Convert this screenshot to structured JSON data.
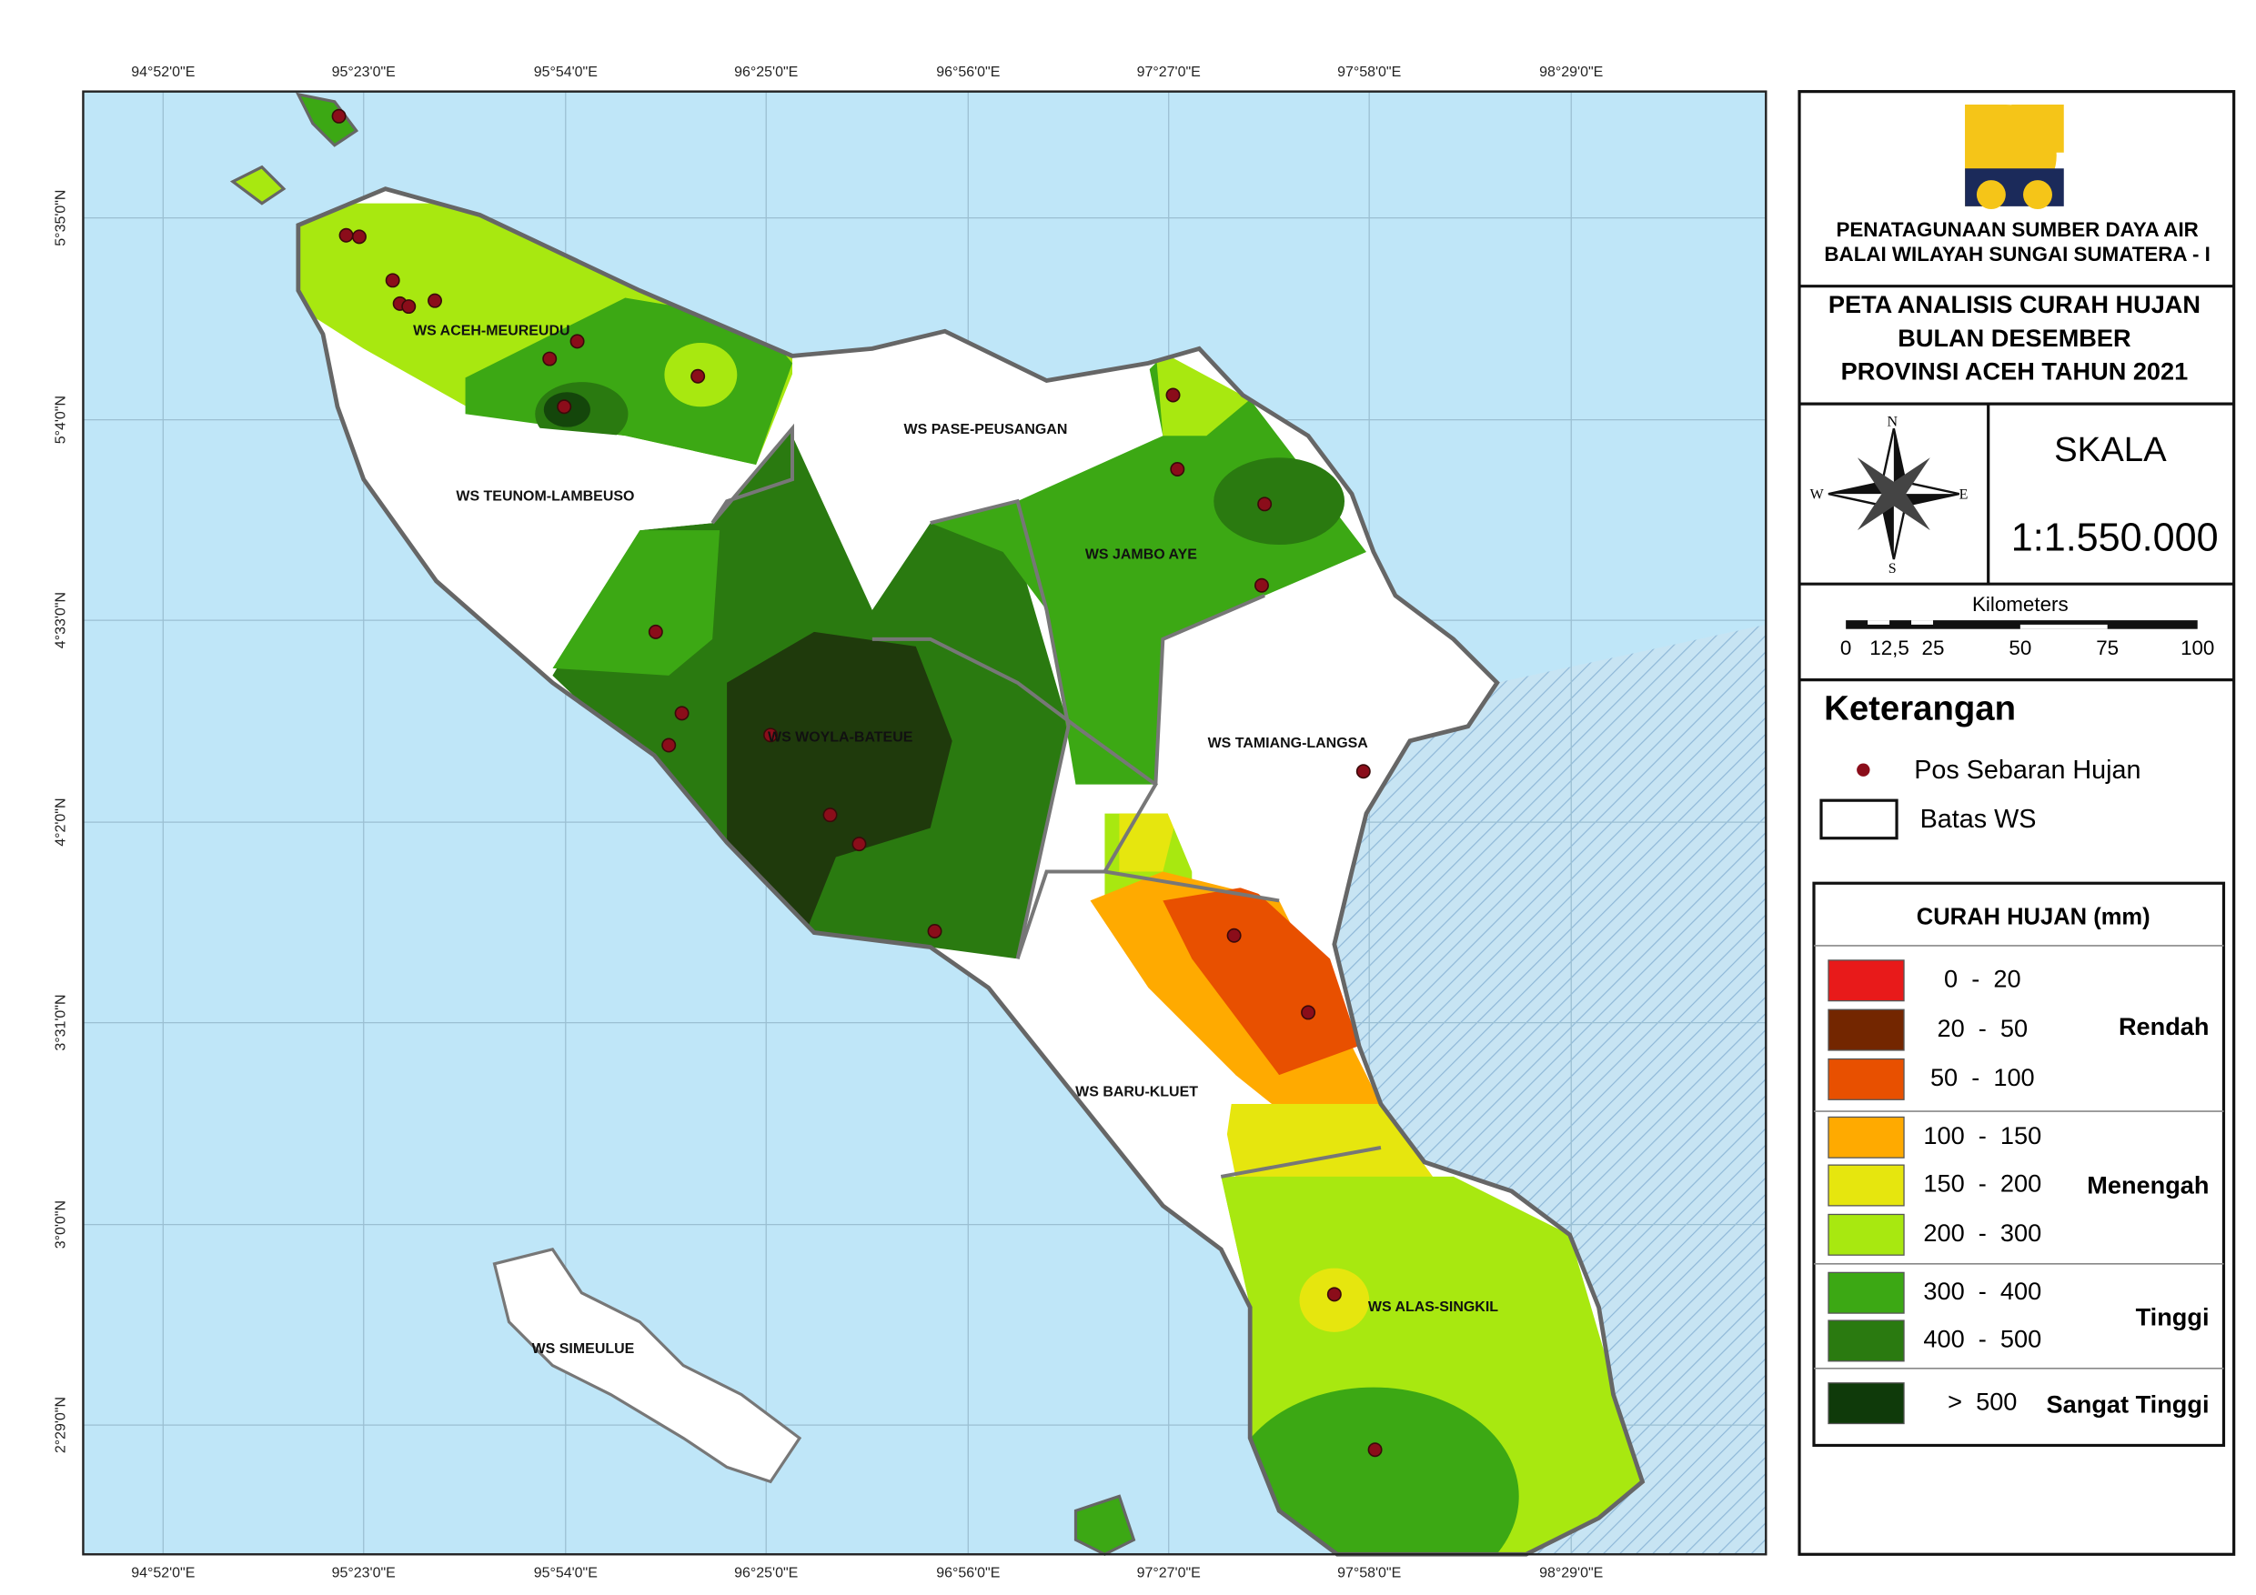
{
  "header": {
    "org": [
      "PENATAGUNAAN SUMBER DAYA AIR",
      "BALAI WILAYAH SUNGAI SUMATERA - I"
    ],
    "title": [
      "PETA ANALISIS CURAH HUJAN",
      "BULAN DESEMBER",
      "PROVINSI ACEH TAHUN 2021"
    ]
  },
  "compass": [
    "N",
    "E",
    "S",
    "W"
  ],
  "scale": {
    "label": "SKALA",
    "ratio": "1:1.550.000",
    "unit": "Kilometers",
    "ticks": [
      "0",
      "12,5",
      "25",
      "50",
      "75",
      "100"
    ]
  },
  "legend": {
    "title": "Keterangan",
    "items": [
      "Pos Sebaran Hujan",
      "Batas WS"
    ]
  },
  "rainfall": {
    "title": "CURAH HUJAN (mm)",
    "classes": [
      {
        "range": "0  -  20",
        "color": "#e81a1a"
      },
      {
        "range": "20  -  50",
        "color": "#732600"
      },
      {
        "range": "50  -  100",
        "color": "#e85000"
      },
      {
        "range": "100  -  150",
        "color": "#ffaa00"
      },
      {
        "range": "150  -  200",
        "color": "#e6e60e"
      },
      {
        "range": "200  -  300",
        "color": "#a8e810"
      },
      {
        "range": "300  -  400",
        "color": "#3ca814"
      },
      {
        "range": "400  -  500",
        "color": "#2a7a10"
      },
      {
        "range": ">  500",
        "color": "#0f3a0a"
      }
    ],
    "groups": [
      "Rendah",
      "Menengah",
      "Tinggi",
      "Sangat Tinggi"
    ]
  },
  "graticule": {
    "longitudes": [
      "94°52'0\"E",
      "95°23'0\"E",
      "95°54'0\"E",
      "96°25'0\"E",
      "96°56'0\"E",
      "97°27'0\"E",
      "97°58'0\"E",
      "98°29'0\"E"
    ],
    "latitudes": [
      "5°35'0\"N",
      "5°4'0\"N",
      "4°33'0\"N",
      "4°2'0\"N",
      "3°31'0\"N",
      "3°0'0\"N",
      "2°29'0\"N"
    ]
  },
  "regions": [
    "WS ACEH-MEUREUDU",
    "WS PASE-PEUSANGAN",
    "WS TEUNOM-LAMBEUSO",
    "WS JAMBO AYE",
    "WS WOYLA-BATEUE",
    "WS TAMIANG-LANGSA",
    "WS BARU-KLUET",
    "WS ALAS-SINGKIL",
    "WS SIMEULUE"
  ]
}
